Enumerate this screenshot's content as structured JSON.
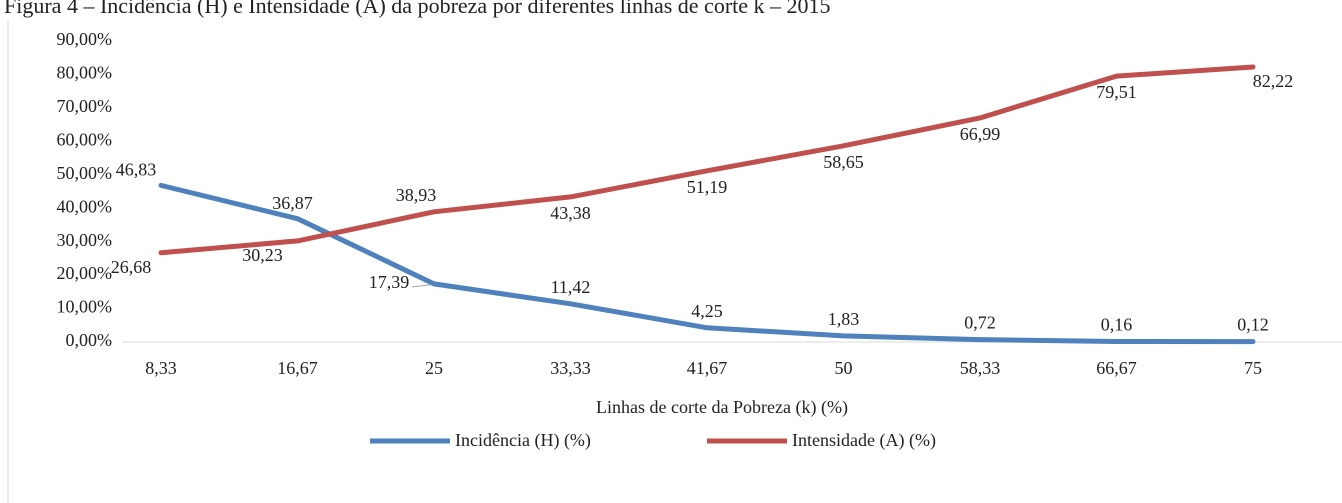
{
  "chart_data": {
    "type": "line",
    "title": "Figura 4 – Incidência (H) e Intensidade (A) da pobreza por diferentes linhas de corte k – 2015",
    "x_label": "Linhas de corte da Pobreza (k) (%)",
    "categories": [
      "8,33",
      "16,67",
      "25",
      "33,33",
      "41,67",
      "50",
      "58,33",
      "66,67",
      "75"
    ],
    "series": [
      {
        "name": "Incidência (H) (%)",
        "color": "#4f81bd",
        "values": [
          46.83,
          36.87,
          17.39,
          11.42,
          4.25,
          1.83,
          0.72,
          0.16,
          0.12
        ],
        "value_labels": [
          "46,83",
          "36,87",
          "17,39",
          "11,42",
          "4,25",
          "1,83",
          "0,72",
          "0,16",
          "0,12"
        ]
      },
      {
        "name": "Intensidade (A) (%)",
        "color": "#c0504d",
        "values": [
          26.68,
          30.23,
          38.93,
          43.38,
          51.19,
          58.65,
          66.99,
          79.51,
          82.22
        ],
        "value_labels": [
          "26,68",
          "30,23",
          "38,93",
          "43,38",
          "51,19",
          "58,65",
          "66,99",
          "79,51",
          "82,22"
        ]
      }
    ],
    "ylim": [
      0,
      90
    ],
    "yticks": [
      {
        "value": 0,
        "label": "0,00%"
      },
      {
        "value": 10,
        "label": "10,00%"
      },
      {
        "value": 20,
        "label": "20,00%"
      },
      {
        "value": 30,
        "label": "30,00%"
      },
      {
        "value": 40,
        "label": "40,00%"
      },
      {
        "value": 50,
        "label": "50,00%"
      },
      {
        "value": 60,
        "label": "60,00%"
      },
      {
        "value": 70,
        "label": "70,00%"
      },
      {
        "value": 80,
        "label": "80,00%"
      },
      {
        "value": 90,
        "label": "90,00%"
      }
    ],
    "grid": false,
    "legend": "bottom"
  }
}
